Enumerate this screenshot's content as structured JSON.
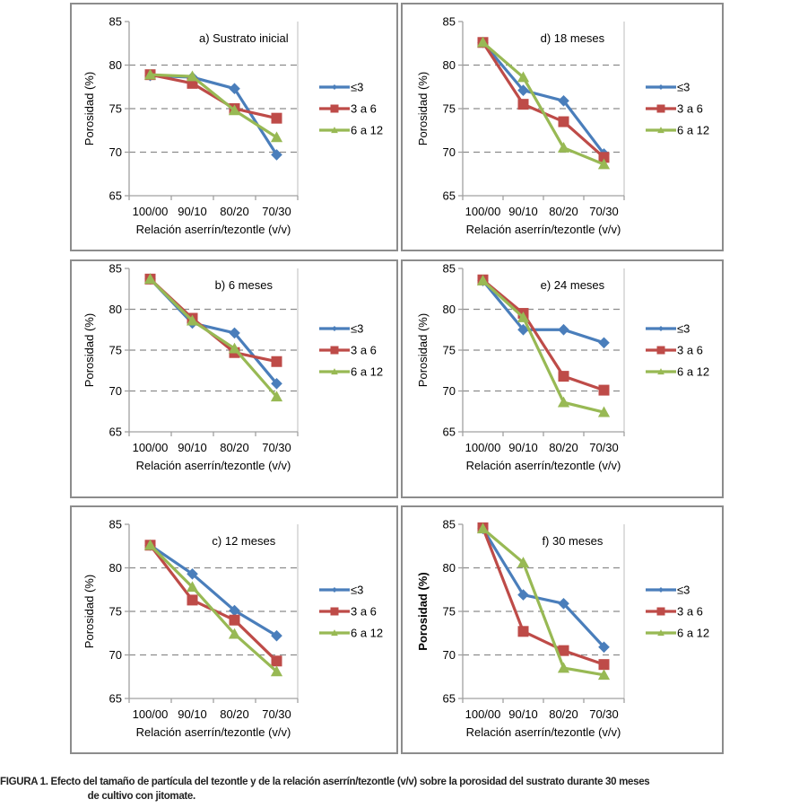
{
  "figure": {
    "caption_label": "FIGURA 1.",
    "caption_text": "Efecto del tamaño de partícula del tezontle y de la relación aserrín/tezontle (v/v) sobre la porosidad del sustrato durante 30 meses",
    "caption_text_cont": "de cultivo con jitomate."
  },
  "colors": {
    "le3": "#4a7ebb",
    "3a6": "#be4b48",
    "6a12": "#98b954",
    "grid": "#8c8c8c",
    "axis": "#a0a0a0",
    "frame": "#8c8c8c"
  },
  "chart_data": [
    {
      "id": "a",
      "type": "line",
      "title": "a) Sustrato inicial",
      "xlabel": "Relación aserrín/tezontle (v/v)",
      "ylabel": "Porosidad (%)",
      "ylabel_bold": false,
      "categories": [
        "100/00",
        "90/10",
        "80/20",
        "70/30"
      ],
      "ylim": [
        65,
        85
      ],
      "yticks": [
        65,
        70,
        75,
        80,
        85
      ],
      "grid": "horizontal dashed at 70, 75, 80",
      "legend_position": "right",
      "series": [
        {
          "name": "≤3",
          "marker": "diamond",
          "values": [
            78.8,
            78.6,
            77.3,
            69.7
          ]
        },
        {
          "name": "3 a 6",
          "marker": "square",
          "values": [
            78.9,
            77.9,
            75.0,
            73.9
          ]
        },
        {
          "name": "6 a 12",
          "marker": "triangle",
          "values": [
            78.9,
            78.7,
            74.8,
            71.7
          ]
        }
      ]
    },
    {
      "id": "d",
      "type": "line",
      "title": "d) 18 meses",
      "xlabel": "Relación aserrín/tezontle (v/v)",
      "ylabel": "Porosidad (%)",
      "ylabel_bold": false,
      "categories": [
        "100/00",
        "90/10",
        "80/20",
        "70/30"
      ],
      "ylim": [
        65,
        85
      ],
      "yticks": [
        65,
        70,
        75,
        80,
        85
      ],
      "grid": "horizontal dashed at 70, 75, 80",
      "legend_position": "right",
      "series": [
        {
          "name": "≤3",
          "marker": "diamond",
          "values": [
            82.6,
            77.1,
            75.9,
            69.8
          ]
        },
        {
          "name": "3 a 6",
          "marker": "square",
          "values": [
            82.6,
            75.5,
            73.5,
            69.4
          ]
        },
        {
          "name": "6 a 12",
          "marker": "triangle",
          "values": [
            82.6,
            78.6,
            70.5,
            68.6
          ]
        }
      ]
    },
    {
      "id": "b",
      "type": "line",
      "title": "b) 6 meses",
      "xlabel": "Relación aserrín/tezontle (v/v)",
      "ylabel": "Porosidad (%)",
      "ylabel_bold": false,
      "categories": [
        "100/00",
        "90/10",
        "80/20",
        "70/30"
      ],
      "ylim": [
        65,
        85
      ],
      "yticks": [
        65,
        70,
        75,
        80,
        85
      ],
      "grid": "horizontal dashed at 70, 75, 80",
      "legend_position": "right",
      "series": [
        {
          "name": "≤3",
          "marker": "diamond",
          "values": [
            83.7,
            78.3,
            77.1,
            70.9
          ]
        },
        {
          "name": "3 a 6",
          "marker": "square",
          "values": [
            83.7,
            78.9,
            74.7,
            73.6
          ]
        },
        {
          "name": "6 a 12",
          "marker": "triangle",
          "values": [
            83.7,
            78.6,
            75.2,
            69.3
          ]
        }
      ]
    },
    {
      "id": "e",
      "type": "line",
      "title": "e) 24 meses",
      "xlabel": "Relación aserrín/tezontle (v/v)",
      "ylabel": "Porosidad (%)",
      "ylabel_bold": false,
      "categories": [
        "100/00",
        "90/10",
        "80/20",
        "70/30"
      ],
      "ylim": [
        65,
        85
      ],
      "yticks": [
        65,
        70,
        75,
        80,
        85
      ],
      "grid": "horizontal dashed at 70, 75, 80",
      "legend_position": "right",
      "series": [
        {
          "name": "≤3",
          "marker": "diamond",
          "values": [
            83.5,
            77.5,
            77.5,
            75.9
          ]
        },
        {
          "name": "3 a 6",
          "marker": "square",
          "values": [
            83.6,
            79.5,
            71.8,
            70.1
          ]
        },
        {
          "name": "6 a 12",
          "marker": "triangle",
          "values": [
            83.5,
            79.0,
            68.6,
            67.4
          ]
        }
      ]
    },
    {
      "id": "c",
      "type": "line",
      "title": "c) 12 meses",
      "xlabel": "Relación aserrín/tezontle (v/v)",
      "ylabel": "Porosidad (%)",
      "ylabel_bold": false,
      "categories": [
        "100/00",
        "90/10",
        "80/20",
        "70/30"
      ],
      "ylim": [
        65,
        85
      ],
      "yticks": [
        65,
        70,
        75,
        80,
        85
      ],
      "grid": "horizontal dashed at 70, 75, 80",
      "legend_position": "right",
      "series": [
        {
          "name": "≤3",
          "marker": "diamond",
          "values": [
            82.6,
            79.3,
            75.1,
            72.2
          ]
        },
        {
          "name": "3 a 6",
          "marker": "square",
          "values": [
            82.6,
            76.3,
            74.0,
            69.3
          ]
        },
        {
          "name": "6 a 12",
          "marker": "triangle",
          "values": [
            82.6,
            77.8,
            72.4,
            68.1
          ]
        }
      ]
    },
    {
      "id": "f",
      "type": "line",
      "title": "f) 30 meses",
      "xlabel": "Relación aserrín/tezontle (v/v)",
      "ylabel": "Porosidad (%)",
      "ylabel_bold": true,
      "categories": [
        "100/00",
        "90/10",
        "80/20",
        "70/30"
      ],
      "ylim": [
        65,
        85
      ],
      "yticks": [
        65,
        70,
        75,
        80,
        85
      ],
      "grid": "horizontal dashed at 70, 75, 80",
      "legend_position": "right",
      "series": [
        {
          "name": "≤3",
          "marker": "diamond",
          "values": [
            84.5,
            76.9,
            75.9,
            70.9
          ]
        },
        {
          "name": "3 a 6",
          "marker": "square",
          "values": [
            84.6,
            72.7,
            70.5,
            68.9
          ]
        },
        {
          "name": "6 a 12",
          "marker": "triangle",
          "values": [
            84.5,
            80.6,
            68.5,
            67.7
          ]
        }
      ]
    }
  ]
}
